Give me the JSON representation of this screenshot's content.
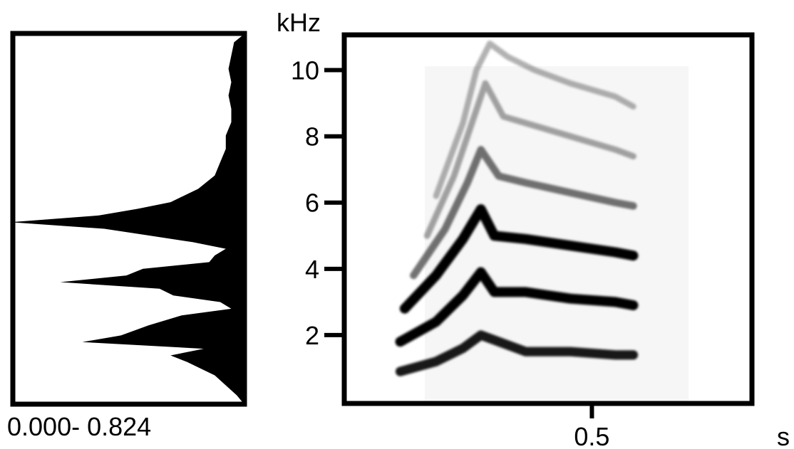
{
  "chart_data": [
    {
      "type": "area",
      "description_panel": "power spectrum",
      "xlabel": "0.000- 0.824",
      "xlim": [
        0,
        0.824
      ],
      "ylim": [
        0,
        11
      ],
      "y_freq_khz": [
        0.2,
        0.8,
        1.2,
        1.4,
        1.6,
        1.8,
        2.0,
        2.3,
        2.6,
        2.8,
        3.0,
        3.2,
        3.4,
        3.6,
        3.8,
        4.0,
        4.2,
        4.4,
        4.6,
        4.8,
        5.0,
        5.2,
        5.4,
        5.6,
        5.8,
        6.0,
        6.4,
        6.8,
        7.2,
        7.6,
        8.0,
        8.4,
        8.8,
        9.2,
        9.6,
        10.0,
        10.4,
        10.8
      ],
      "values": [
        0.02,
        0.1,
        0.2,
        0.26,
        0.14,
        0.58,
        0.44,
        0.34,
        0.22,
        0.04,
        0.08,
        0.25,
        0.3,
        0.66,
        0.42,
        0.36,
        0.12,
        0.1,
        0.06,
        0.18,
        0.34,
        0.5,
        0.84,
        0.52,
        0.38,
        0.26,
        0.16,
        0.1,
        0.08,
        0.06,
        0.06,
        0.04,
        0.04,
        0.05,
        0.04,
        0.05,
        0.04,
        0.03
      ]
    },
    {
      "type": "heatmap",
      "description_panel": "spectrogram",
      "ylabel": "kHz",
      "xlabel": "s",
      "y_ticks": [
        "2",
        "4",
        "6",
        "8",
        "10"
      ],
      "x_ticks": [
        "0.5"
      ],
      "y_tick_values": [
        2,
        4,
        6,
        8,
        10
      ],
      "x_tick_values": [
        0.5
      ],
      "xlim": [
        0,
        0.9
      ],
      "ylim": [
        0,
        11
      ],
      "harmonics": [
        {
          "name": "",
          "x": [
            0.12,
            0.2,
            0.26,
            0.3,
            0.4,
            0.5,
            0.6,
            0.64
          ],
          "y": [
            0.9,
            1.2,
            1.6,
            2.0,
            1.5,
            1.5,
            1.4,
            1.4
          ],
          "weight": 0.9
        },
        {
          "name": "",
          "x": [
            0.12,
            0.2,
            0.26,
            0.3,
            0.33,
            0.4,
            0.5,
            0.6,
            0.64
          ],
          "y": [
            1.8,
            2.4,
            3.2,
            3.9,
            3.3,
            3.3,
            3.1,
            3.0,
            2.9
          ],
          "weight": 1.0
        },
        {
          "name": "",
          "x": [
            0.13,
            0.2,
            0.26,
            0.3,
            0.33,
            0.4,
            0.5,
            0.6,
            0.64
          ],
          "y": [
            2.8,
            3.8,
            4.9,
            5.8,
            5.0,
            4.9,
            4.7,
            4.5,
            4.4
          ],
          "weight": 1.0
        },
        {
          "name": "",
          "x": [
            0.15,
            0.22,
            0.27,
            0.3,
            0.34,
            0.4,
            0.5,
            0.6,
            0.64
          ],
          "y": [
            3.8,
            5.2,
            6.6,
            7.6,
            6.8,
            6.6,
            6.3,
            6.0,
            5.9
          ],
          "weight": 0.55
        },
        {
          "name": "",
          "x": [
            0.18,
            0.24,
            0.28,
            0.31,
            0.35,
            0.4,
            0.5,
            0.6,
            0.64
          ],
          "y": [
            5.0,
            6.8,
            8.4,
            9.6,
            8.6,
            8.4,
            8.0,
            7.6,
            7.4
          ],
          "weight": 0.35
        },
        {
          "name": "",
          "x": [
            0.2,
            0.26,
            0.29,
            0.32,
            0.36,
            0.42,
            0.5,
            0.6,
            0.64
          ],
          "y": [
            6.2,
            8.4,
            10.0,
            10.8,
            10.4,
            10.0,
            9.6,
            9.2,
            8.9
          ],
          "weight": 0.3
        }
      ]
    }
  ]
}
